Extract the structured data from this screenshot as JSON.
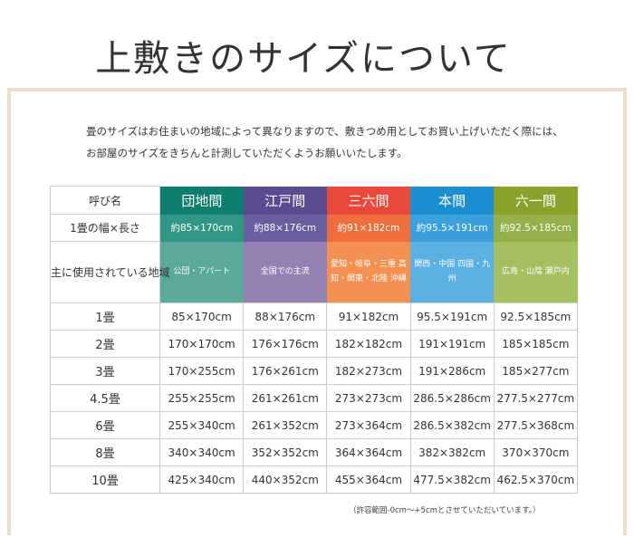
{
  "title": "上敷きのサイズについて",
  "intro": [
    "畳のサイズはお住まいの地域によって異なりますので、敷きつめ用としてお買い上げいただく際には、",
    "お部屋のサイズをきちんと計測していただくようお願いいたします。"
  ],
  "table": {
    "header_label": "呼び名",
    "width_label": "1畳の幅×長さ",
    "region_label": "主に使用されている地域",
    "columns": [
      {
        "name": "団地間",
        "size": "約85×170cm",
        "region": "公団・アパート",
        "colors": [
          "#0e7f6e",
          "#2f9784",
          "#5aa99b"
        ]
      },
      {
        "name": "江戸間",
        "size": "約88×176cm",
        "region": "全国での主流",
        "colors": [
          "#5b4a90",
          "#6b5ea0",
          "#9580b3"
        ]
      },
      {
        "name": "三六間",
        "size": "約91×182cm",
        "region": "愛知・岐阜・三重 高知・関東・北陸 沖縄",
        "colors": [
          "#e9483a",
          "#f06e3d",
          "#f39152"
        ]
      },
      {
        "name": "本間",
        "size": "約95.5×191cm",
        "region": "関西・中国 四国・九州",
        "colors": [
          "#1a8fd0",
          "#3aa0dc",
          "#5ab0e2"
        ]
      },
      {
        "name": "六一間",
        "size": "約92.5×185cm",
        "region": "広島・山陰 瀬戸内",
        "colors": [
          "#8aa12a",
          "#93b04a",
          "#a5c060"
        ]
      }
    ],
    "rows": [
      {
        "label": "1畳",
        "values": [
          "85×170cm",
          "88×176cm",
          "91×182cm",
          "95.5×191cm",
          "92.5×185cm"
        ]
      },
      {
        "label": "2畳",
        "values": [
          "170×170cm",
          "176×176cm",
          "182×182cm",
          "191×191cm",
          "185×185cm"
        ]
      },
      {
        "label": "3畳",
        "values": [
          "170×255cm",
          "176×261cm",
          "182×273cm",
          "191×286cm",
          "185×277cm"
        ]
      },
      {
        "label": "4.5畳",
        "values": [
          "255×255cm",
          "261×261cm",
          "273×273cm",
          "286.5×286cm",
          "277.5×277cm"
        ]
      },
      {
        "label": "6畳",
        "values": [
          "255×340cm",
          "261×352cm",
          "273×364cm",
          "286.5×382cm",
          "277.5×368cm"
        ]
      },
      {
        "label": "8畳",
        "values": [
          "340×340cm",
          "352×352cm",
          "364×364cm",
          "382×382cm",
          "370×370cm"
        ]
      },
      {
        "label": "10畳",
        "values": [
          "425×340cm",
          "440×352cm",
          "455×364cm",
          "477.5×382cm",
          "462.5×370cm"
        ]
      }
    ]
  },
  "note": "（許容範囲-0cm～+5cmとさせていただいています。）"
}
